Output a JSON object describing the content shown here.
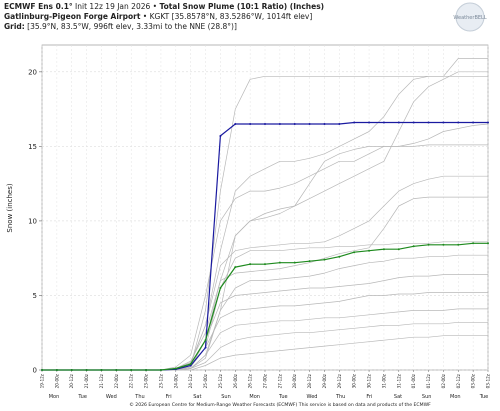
{
  "chart_data": {
    "type": "line",
    "title_parts": [
      "ECMWF Ens 0.1°",
      " Init 12z 19 Jan 2026 • ",
      "Total Snow Plume (10:1 Ratio) (Inches)"
    ],
    "subtitle_parts": [
      "Gatlinburg-Pigeon Forge Airport",
      " • KGKT [35.8578°N, 83.5286°W, 1014ft elev]"
    ],
    "grid_parts": [
      "Grid:",
      " [35.9°N, 83.5°W, 996ft elev, 3.33mi to the NNE (28.8°)]"
    ],
    "logo": "WeatherBELL",
    "ylabel": "Snow (inches)",
    "footer": "© 2026 European Centre for Medium-Range Weather Forecasts (ECMWF) This service is based on data and products of the ECMWF",
    "categories": [
      "19-12z",
      "20-00z",
      "20-12z",
      "21-00z",
      "21-12z",
      "22-00z",
      "22-12z",
      "23-00z",
      "23-12z",
      "24-00z",
      "24-12z",
      "25-00z",
      "25-12z",
      "26-00z",
      "26-12z",
      "27-00z",
      "27-12z",
      "28-00z",
      "28-12z",
      "29-00z",
      "29-12z",
      "30-00z",
      "30-12z",
      "31-00z",
      "31-12z",
      "01-00z",
      "01-12z",
      "02-00z",
      "02-12z",
      "03-00z",
      "03-12z"
    ],
    "day_labels": [
      "Mon",
      "Tue",
      "Wed",
      "Thu",
      "Fri",
      "Sat",
      "Sun",
      "Mon",
      "Tue",
      "Wed",
      "Thu",
      "Fri",
      "Sat",
      "Sun",
      "Mon",
      "Tue"
    ],
    "ylim": [
      0,
      21.8
    ],
    "yticks": [
      0,
      5,
      10,
      15,
      20
    ],
    "grid": true,
    "member_color": "#b8b8b8",
    "members": [
      [
        0,
        0,
        0,
        0,
        0,
        0,
        0,
        0,
        0,
        0.1,
        0.5,
        3.0,
        8.0,
        12.0,
        13.0,
        13.5,
        14.0,
        14.0,
        14.2,
        14.5,
        15.0,
        15.5,
        16.0,
        17.0,
        18.5,
        19.5,
        19.7,
        19.7,
        20.9,
        20.9,
        20.9
      ],
      [
        0,
        0,
        0,
        0,
        0,
        0,
        0,
        0,
        0,
        0,
        0.3,
        4.0,
        12.0,
        17.5,
        19.5,
        19.7,
        19.7,
        19.7,
        19.7,
        19.7,
        19.7,
        19.7,
        19.7,
        19.7,
        19.7,
        19.7,
        19.7,
        19.7,
        19.7,
        19.7,
        19.7
      ],
      [
        0,
        0,
        0,
        0,
        0,
        0,
        0,
        0,
        0,
        0.2,
        1.0,
        5.0,
        10.0,
        11.5,
        12.0,
        12.0,
        12.2,
        12.5,
        13.0,
        13.5,
        14.0,
        14.0,
        14.5,
        15.0,
        15.0,
        15.2,
        15.5,
        16.0,
        16.2,
        16.4,
        16.5
      ],
      [
        0,
        0,
        0,
        0,
        0,
        0,
        0,
        0,
        0,
        0,
        0.2,
        2.0,
        6.0,
        9.0,
        10.0,
        10.2,
        10.5,
        11.0,
        12.5,
        14.0,
        14.5,
        14.8,
        15.0,
        15.0,
        15.0,
        15.0,
        15.1,
        15.1,
        15.1,
        15.1,
        15.1
      ],
      [
        0,
        0,
        0,
        0,
        0,
        0,
        0,
        0,
        0,
        0.1,
        0.4,
        3.0,
        7.0,
        8.0,
        8.2,
        8.3,
        8.4,
        8.5,
        8.5,
        8.6,
        9.0,
        9.5,
        10.0,
        11.0,
        12.0,
        12.5,
        12.8,
        13.0,
        13.0,
        13.0,
        13.0
      ],
      [
        0,
        0,
        0,
        0,
        0,
        0,
        0,
        0,
        0,
        0,
        0.2,
        1.5,
        5.5,
        7.5,
        8.0,
        8.0,
        8.0,
        8.1,
        8.2,
        8.2,
        8.3,
        8.3,
        8.4,
        8.4,
        8.5,
        8.5,
        8.5,
        8.6,
        8.6,
        8.6,
        8.6
      ],
      [
        0,
        0,
        0,
        0,
        0,
        0,
        0,
        0,
        0,
        0.1,
        0.6,
        2.5,
        6.0,
        6.5,
        6.6,
        6.7,
        6.8,
        7.0,
        7.2,
        7.5,
        7.8,
        8.0,
        8.2,
        9.5,
        11.0,
        11.5,
        11.6,
        11.6,
        11.6,
        11.6,
        11.6
      ],
      [
        0,
        0,
        0,
        0,
        0,
        0,
        0,
        0,
        0,
        0,
        0.1,
        1.0,
        4.0,
        5.5,
        6.0,
        6.0,
        6.1,
        6.2,
        6.3,
        6.5,
        6.8,
        7.0,
        7.2,
        7.3,
        7.5,
        7.5,
        7.6,
        7.6,
        7.7,
        7.7,
        7.7
      ],
      [
        0,
        0,
        0,
        0,
        0,
        0,
        0,
        0,
        0,
        0,
        0.2,
        2.0,
        4.5,
        5.0,
        5.1,
        5.2,
        5.3,
        5.4,
        5.5,
        5.5,
        5.6,
        5.7,
        5.8,
        6.0,
        6.2,
        6.3,
        6.3,
        6.4,
        6.4,
        6.4,
        6.4
      ],
      [
        0,
        0,
        0,
        0,
        0,
        0,
        0,
        0,
        0,
        0.1,
        0.3,
        1.5,
        3.5,
        4.0,
        4.1,
        4.2,
        4.3,
        4.3,
        4.4,
        4.5,
        4.6,
        4.8,
        5.0,
        5.0,
        5.1,
        5.1,
        5.2,
        5.2,
        5.2,
        5.2,
        5.2
      ],
      [
        0,
        0,
        0,
        0,
        0,
        0,
        0,
        0,
        0,
        0,
        0.1,
        1.0,
        2.5,
        3.0,
        3.1,
        3.2,
        3.3,
        3.3,
        3.4,
        3.5,
        3.5,
        3.6,
        3.7,
        3.8,
        3.9,
        4.0,
        4.0,
        4.0,
        4.1,
        4.1,
        4.1
      ],
      [
        0,
        0,
        0,
        0,
        0,
        0,
        0,
        0,
        0,
        0,
        0.1,
        0.5,
        1.5,
        2.0,
        2.2,
        2.3,
        2.4,
        2.5,
        2.5,
        2.6,
        2.7,
        2.8,
        2.9,
        3.0,
        3.0,
        3.1,
        3.1,
        3.1,
        3.2,
        3.2,
        3.2
      ],
      [
        0,
        0,
        0,
        0,
        0,
        0,
        0,
        0,
        0,
        0,
        0,
        0.3,
        0.8,
        1.0,
        1.1,
        1.2,
        1.3,
        1.4,
        1.5,
        1.6,
        1.7,
        1.8,
        1.9,
        2.0,
        2.1,
        2.2,
        2.2,
        2.3,
        2.3,
        2.3,
        2.3
      ],
      [
        0,
        0,
        0,
        0,
        0,
        0,
        0,
        0,
        0,
        0,
        0.1,
        0.8,
        4.0,
        9.0,
        10.0,
        10.5,
        10.8,
        11.0,
        11.5,
        12.0,
        12.5,
        13.0,
        13.5,
        14.0,
        16.0,
        18.0,
        19.0,
        19.5,
        20.0,
        20.0,
        20.0
      ]
    ],
    "series": [
      {
        "color": "#1a1aa0",
        "values": [
          0,
          0,
          0,
          0,
          0,
          0,
          0,
          0,
          0,
          0.05,
          0.3,
          1.5,
          15.7,
          16.5,
          16.5,
          16.5,
          16.5,
          16.5,
          16.5,
          16.5,
          16.5,
          16.6,
          16.6,
          16.6,
          16.6,
          16.6,
          16.6,
          16.6,
          16.6,
          16.6,
          16.6
        ]
      },
      {
        "color": "#1e8a1e",
        "values": [
          0,
          0,
          0,
          0,
          0,
          0,
          0,
          0,
          0,
          0.1,
          0.4,
          2.0,
          5.5,
          6.9,
          7.1,
          7.1,
          7.2,
          7.2,
          7.3,
          7.4,
          7.6,
          7.9,
          8.0,
          8.1,
          8.1,
          8.3,
          8.4,
          8.4,
          8.4,
          8.5,
          8.5
        ]
      }
    ]
  }
}
